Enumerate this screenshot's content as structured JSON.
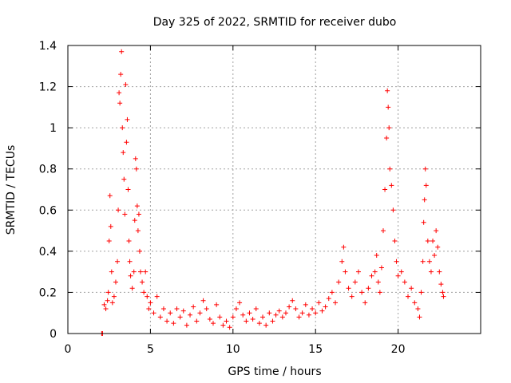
{
  "chart_data": {
    "type": "scatter",
    "title": "Day 325 of 2022, SRMTID for receiver dubo",
    "xlabel": "GPS time / hours",
    "ylabel": "SRMTID / TECUs",
    "xlim": [
      0,
      25
    ],
    "ylim": [
      0,
      1.4
    ],
    "xticks": [
      0,
      5,
      10,
      15,
      20
    ],
    "yticks": [
      0,
      0.2,
      0.4,
      0.6,
      0.8,
      1,
      1.2,
      1.4
    ],
    "xtick_labels": [
      "0",
      "5",
      "10",
      "15",
      "20"
    ],
    "ytick_labels": [
      "0",
      "0.2",
      "0.4",
      "0.6",
      "0.8",
      "1",
      "1.2",
      "1.4"
    ],
    "grid": true,
    "series": [
      {
        "name": "SRMTID",
        "color": "#ff0000",
        "marker": "plus",
        "points": [
          [
            2.05,
            0.0
          ],
          [
            2.1,
            0.0
          ],
          [
            2.2,
            0.14
          ],
          [
            2.3,
            0.12
          ],
          [
            2.4,
            0.16
          ],
          [
            2.45,
            0.2
          ],
          [
            2.5,
            0.45
          ],
          [
            2.55,
            0.67
          ],
          [
            2.6,
            0.52
          ],
          [
            2.65,
            0.3
          ],
          [
            2.7,
            0.15
          ],
          [
            2.8,
            0.18
          ],
          [
            2.9,
            0.25
          ],
          [
            3.0,
            0.35
          ],
          [
            3.05,
            0.6
          ],
          [
            3.1,
            1.17
          ],
          [
            3.15,
            1.12
          ],
          [
            3.2,
            1.26
          ],
          [
            3.25,
            1.37
          ],
          [
            3.3,
            1.0
          ],
          [
            3.35,
            0.88
          ],
          [
            3.4,
            0.75
          ],
          [
            3.45,
            0.58
          ],
          [
            3.5,
            1.21
          ],
          [
            3.55,
            0.93
          ],
          [
            3.6,
            1.04
          ],
          [
            3.65,
            0.7
          ],
          [
            3.7,
            0.45
          ],
          [
            3.75,
            0.35
          ],
          [
            3.8,
            0.28
          ],
          [
            3.9,
            0.22
          ],
          [
            4.0,
            0.3
          ],
          [
            4.05,
            0.55
          ],
          [
            4.1,
            0.85
          ],
          [
            4.15,
            0.8
          ],
          [
            4.2,
            0.62
          ],
          [
            4.25,
            0.5
          ],
          [
            4.3,
            0.58
          ],
          [
            4.35,
            0.4
          ],
          [
            4.4,
            0.3
          ],
          [
            4.5,
            0.25
          ],
          [
            4.6,
            0.2
          ],
          [
            4.7,
            0.3
          ],
          [
            4.8,
            0.18
          ],
          [
            4.9,
            0.12
          ],
          [
            5.0,
            0.15
          ],
          [
            5.2,
            0.1
          ],
          [
            5.4,
            0.18
          ],
          [
            5.6,
            0.08
          ],
          [
            5.8,
            0.12
          ],
          [
            6.0,
            0.06
          ],
          [
            6.2,
            0.1
          ],
          [
            6.4,
            0.05
          ],
          [
            6.6,
            0.12
          ],
          [
            6.8,
            0.08
          ],
          [
            7.0,
            0.11
          ],
          [
            7.2,
            0.04
          ],
          [
            7.4,
            0.09
          ],
          [
            7.6,
            0.13
          ],
          [
            7.8,
            0.06
          ],
          [
            8.0,
            0.1
          ],
          [
            8.2,
            0.16
          ],
          [
            8.4,
            0.12
          ],
          [
            8.6,
            0.07
          ],
          [
            8.8,
            0.05
          ],
          [
            9.0,
            0.14
          ],
          [
            9.2,
            0.08
          ],
          [
            9.4,
            0.04
          ],
          [
            9.6,
            0.06
          ],
          [
            9.8,
            0.03
          ],
          [
            10.0,
            0.08
          ],
          [
            10.2,
            0.12
          ],
          [
            10.4,
            0.15
          ],
          [
            10.6,
            0.09
          ],
          [
            10.8,
            0.06
          ],
          [
            11.0,
            0.1
          ],
          [
            11.2,
            0.07
          ],
          [
            11.4,
            0.12
          ],
          [
            11.6,
            0.05
          ],
          [
            11.8,
            0.08
          ],
          [
            12.0,
            0.04
          ],
          [
            12.2,
            0.1
          ],
          [
            12.4,
            0.06
          ],
          [
            12.6,
            0.09
          ],
          [
            12.8,
            0.11
          ],
          [
            13.0,
            0.08
          ],
          [
            13.2,
            0.1
          ],
          [
            13.4,
            0.13
          ],
          [
            13.6,
            0.16
          ],
          [
            13.8,
            0.12
          ],
          [
            14.0,
            0.08
          ],
          [
            14.2,
            0.1
          ],
          [
            14.4,
            0.14
          ],
          [
            14.6,
            0.09
          ],
          [
            14.8,
            0.12
          ],
          [
            15.0,
            0.1
          ],
          [
            15.2,
            0.15
          ],
          [
            15.4,
            0.11
          ],
          [
            15.6,
            0.13
          ],
          [
            15.8,
            0.17
          ],
          [
            16.0,
            0.2
          ],
          [
            16.2,
            0.15
          ],
          [
            16.4,
            0.25
          ],
          [
            16.6,
            0.35
          ],
          [
            16.7,
            0.42
          ],
          [
            16.8,
            0.3
          ],
          [
            17.0,
            0.22
          ],
          [
            17.2,
            0.18
          ],
          [
            17.4,
            0.25
          ],
          [
            17.6,
            0.3
          ],
          [
            17.8,
            0.2
          ],
          [
            18.0,
            0.15
          ],
          [
            18.2,
            0.22
          ],
          [
            18.4,
            0.28
          ],
          [
            18.6,
            0.3
          ],
          [
            18.7,
            0.38
          ],
          [
            18.8,
            0.25
          ],
          [
            18.9,
            0.2
          ],
          [
            19.0,
            0.32
          ],
          [
            19.1,
            0.5
          ],
          [
            19.2,
            0.7
          ],
          [
            19.3,
            0.95
          ],
          [
            19.35,
            1.18
          ],
          [
            19.4,
            1.1
          ],
          [
            19.45,
            1.0
          ],
          [
            19.5,
            0.8
          ],
          [
            19.6,
            0.72
          ],
          [
            19.7,
            0.6
          ],
          [
            19.8,
            0.45
          ],
          [
            19.9,
            0.35
          ],
          [
            20.0,
            0.28
          ],
          [
            20.2,
            0.3
          ],
          [
            20.4,
            0.25
          ],
          [
            20.6,
            0.18
          ],
          [
            20.8,
            0.22
          ],
          [
            21.0,
            0.15
          ],
          [
            21.2,
            0.12
          ],
          [
            21.3,
            0.08
          ],
          [
            21.4,
            0.2
          ],
          [
            21.5,
            0.35
          ],
          [
            21.55,
            0.54
          ],
          [
            21.6,
            0.65
          ],
          [
            21.65,
            0.8
          ],
          [
            21.7,
            0.72
          ],
          [
            21.8,
            0.45
          ],
          [
            21.9,
            0.35
          ],
          [
            22.0,
            0.3
          ],
          [
            22.1,
            0.45
          ],
          [
            22.2,
            0.38
          ],
          [
            22.3,
            0.5
          ],
          [
            22.4,
            0.42
          ],
          [
            22.5,
            0.3
          ],
          [
            22.6,
            0.24
          ],
          [
            22.7,
            0.2
          ],
          [
            22.75,
            0.18
          ]
        ]
      }
    ]
  }
}
